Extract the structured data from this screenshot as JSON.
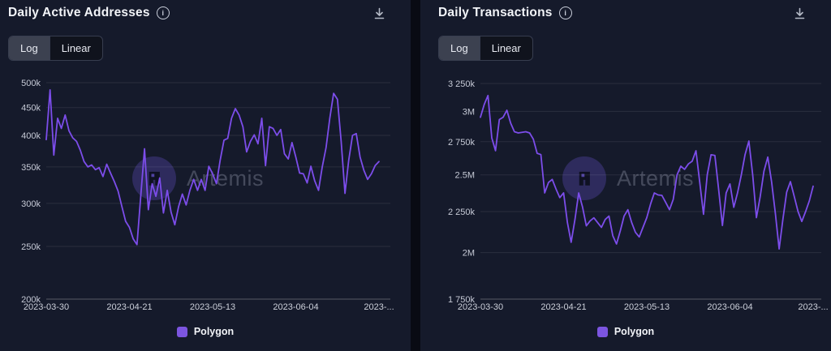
{
  "page": {
    "background": "#090b13",
    "panel_background": "#151a2b",
    "accent_color": "#7c4dea"
  },
  "panels": [
    {
      "title": "Daily Active Addresses",
      "info_icon_glyph": "i",
      "scale_toggle": {
        "options": [
          "Log",
          "Linear"
        ],
        "selected": "Log"
      },
      "legend": [
        {
          "label": "Polygon",
          "color": "#7c55e0"
        }
      ],
      "watermark_text": "Artemis"
    },
    {
      "title": "Daily Transactions",
      "info_icon_glyph": "i",
      "scale_toggle": {
        "options": [
          "Log",
          "Linear"
        ],
        "selected": "Log"
      },
      "legend": [
        {
          "label": "Polygon",
          "color": "#7c55e0"
        }
      ],
      "watermark_text": "Artemis"
    }
  ],
  "chart_data": [
    {
      "type": "line",
      "title": "Daily Active Addresses",
      "scale": "log",
      "grid": true,
      "legend_position": "bottom",
      "ylim": [
        200000,
        500000
      ],
      "x_start_date": "2023-03-30",
      "x_interval": "daily",
      "x_tick_labels": [
        "2023-03-30",
        "2023-04-21",
        "2023-05-13",
        "2023-06-04",
        "2023-..."
      ],
      "x_tick_indices": [
        0,
        22,
        44,
        66,
        88
      ],
      "y_ticks": [
        {
          "label": "500k",
          "value": 500000
        },
        {
          "label": "450k",
          "value": 450000
        },
        {
          "label": "400k",
          "value": 400000
        },
        {
          "label": "350k",
          "value": 350000
        },
        {
          "label": "300k",
          "value": 300000
        },
        {
          "label": "250k",
          "value": 250000
        },
        {
          "label": "200k",
          "value": 200000
        }
      ],
      "series": [
        {
          "name": "Polygon",
          "color": "#7c4dea",
          "values": [
            393000,
            485000,
            368000,
            430000,
            412000,
            436000,
            408000,
            396000,
            390000,
            376000,
            358000,
            350000,
            353000,
            346000,
            349000,
            336000,
            354000,
            341000,
            329000,
            316000,
            296000,
            278000,
            271000,
            258000,
            252000,
            310000,
            378000,
            292000,
            326000,
            309000,
            334000,
            288000,
            317000,
            289000,
            274000,
            296000,
            312000,
            298000,
            317000,
            332000,
            317000,
            332000,
            317000,
            351000,
            340000,
            326000,
            360000,
            392000,
            395000,
            430000,
            448000,
            436000,
            415000,
            373000,
            390000,
            401000,
            386000,
            430000,
            352000,
            415000,
            412000,
            400000,
            410000,
            370000,
            362000,
            388000,
            365000,
            341000,
            340000,
            327000,
            351000,
            330000,
            317000,
            350000,
            380000,
            430000,
            478000,
            466000,
            390000,
            313000,
            360000,
            400000,
            403000,
            365000,
            345000,
            332000,
            340000,
            352000,
            358000
          ]
        }
      ]
    },
    {
      "type": "line",
      "title": "Daily Transactions",
      "scale": "log",
      "grid": true,
      "legend_position": "bottom",
      "ylim": [
        1750000,
        3250000
      ],
      "x_start_date": "2023-03-30",
      "x_interval": "daily",
      "x_tick_labels": [
        "2023-03-30",
        "2023-04-21",
        "2023-05-13",
        "2023-06-04",
        "2023-..."
      ],
      "x_tick_indices": [
        0,
        22,
        44,
        66,
        88
      ],
      "y_ticks": [
        {
          "label": "3 250k",
          "value": 3250000
        },
        {
          "label": "3M",
          "value": 3000000
        },
        {
          "label": "2 750k",
          "value": 2750000
        },
        {
          "label": "2.5M",
          "value": 2500000
        },
        {
          "label": "2 250k",
          "value": 2250000
        },
        {
          "label": "2M",
          "value": 2000000
        },
        {
          "label": "1 750k",
          "value": 1750000
        }
      ],
      "series": [
        {
          "name": "Polygon",
          "color": "#7c4dea",
          "values": [
            2950000,
            3060000,
            3140000,
            2780000,
            2680000,
            2930000,
            2950000,
            3010000,
            2900000,
            2830000,
            2820000,
            2825000,
            2830000,
            2820000,
            2770000,
            2660000,
            2650000,
            2374000,
            2446000,
            2468000,
            2400000,
            2342000,
            2374000,
            2180000,
            2060000,
            2200000,
            2374000,
            2280000,
            2160000,
            2190000,
            2210000,
            2180000,
            2150000,
            2200000,
            2221000,
            2100000,
            2050000,
            2130000,
            2221000,
            2262000,
            2180000,
            2120000,
            2092000,
            2150000,
            2211000,
            2300000,
            2374000,
            2360000,
            2357000,
            2310000,
            2262000,
            2330000,
            2500000,
            2563000,
            2540000,
            2580000,
            2600000,
            2679000,
            2450000,
            2233000,
            2500000,
            2649000,
            2643000,
            2400000,
            2162000,
            2374000,
            2436000,
            2278000,
            2374000,
            2500000,
            2650000,
            2755000,
            2500000,
            2211000,
            2350000,
            2527000,
            2631000,
            2450000,
            2240000,
            2021000,
            2200000,
            2380000,
            2452000,
            2350000,
            2250000,
            2187000,
            2250000,
            2320000,
            2420000
          ]
        }
      ]
    }
  ]
}
